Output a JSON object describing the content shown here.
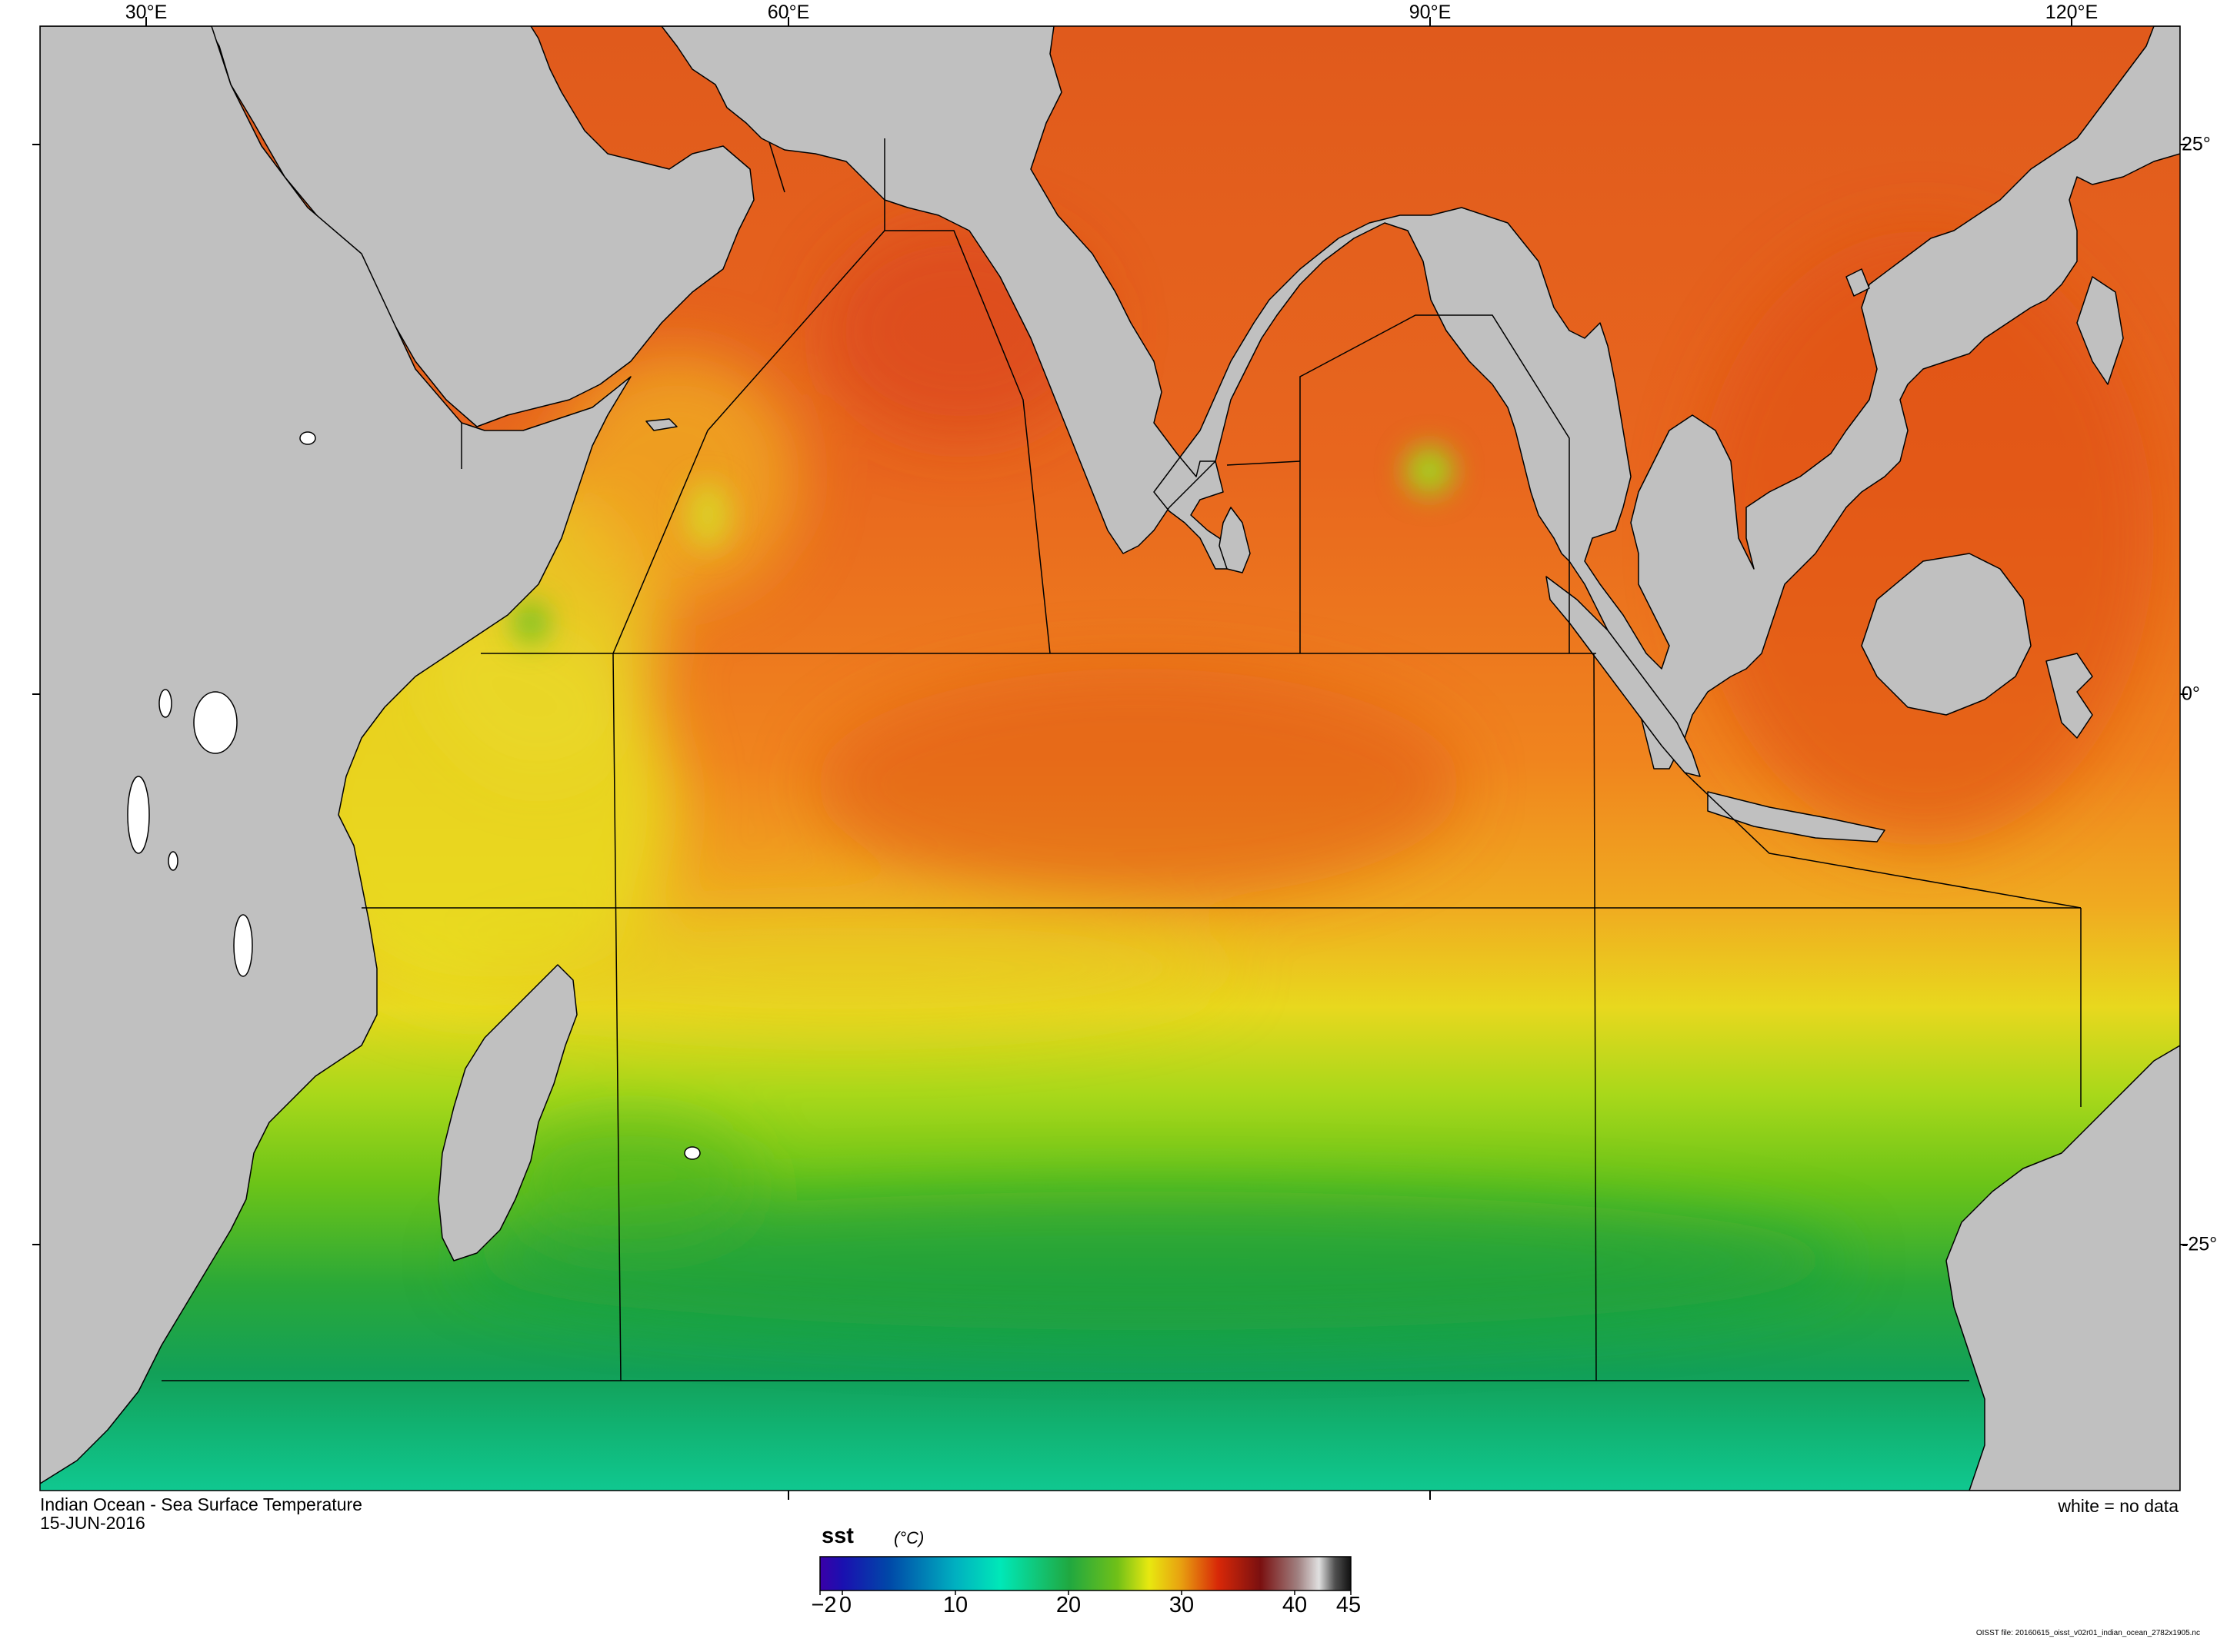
{
  "map": {
    "title": "Indian Ocean - Sea Surface Temperature",
    "date": "15-JUN-2016",
    "no_data_note": "white = no data",
    "variable": "sst",
    "unit": "(°C)",
    "file_credit": "OISST file: 20160615_oisst_v02r01_indian_ocean_2782x1905.nc",
    "longitude_labels": [
      "30°E",
      "60°E",
      "90°E",
      "120°E"
    ],
    "latitude_labels": [
      "25°",
      "0°",
      "-25°"
    ],
    "colorbar": {
      "min": -2,
      "max": 45,
      "tick_labels": [
        "−2",
        "0",
        "10",
        "20",
        "30",
        "40",
        "45"
      ],
      "colors": [
        "#3a00a8",
        "#0030b0",
        "#00bcc0",
        "#00e8b8",
        "#28b040",
        "#58c018",
        "#e8e810",
        "#e8a010",
        "#d82808",
        "#701010",
        "#d8d8d8",
        "#181818"
      ]
    },
    "colors": {
      "land": "#c0c0c0",
      "no_data": "#ffffff",
      "warm_ocean": "#e8581c",
      "hot_ocean": "#d83010",
      "tropical_ocean": "#f08a22",
      "mid_ocean": "#e8d81e",
      "temperate_ocean": "#7ccc18",
      "cool_ocean": "#1aa050",
      "cold_ocean": "#10c890",
      "coast_line": "#000000",
      "region_line": "#000000"
    }
  }
}
